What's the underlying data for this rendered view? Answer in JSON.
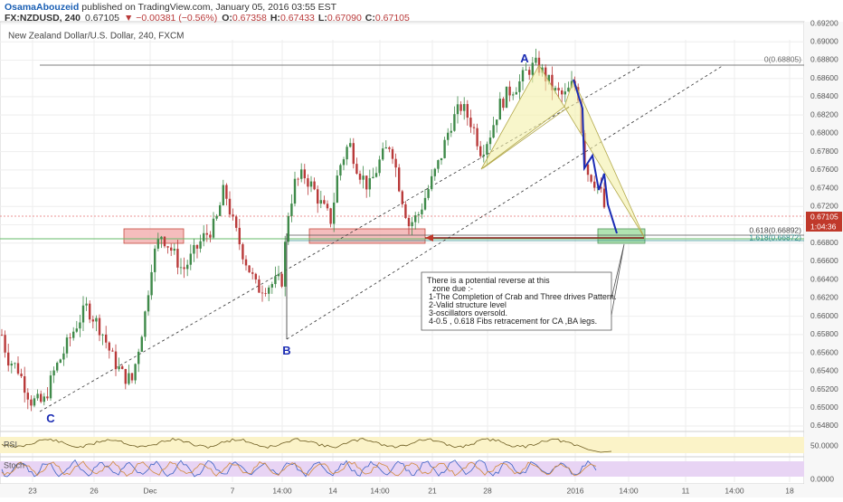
{
  "header": {
    "author": "OsamaAbouzeid",
    "published_text": "published on TradingView.com, January 05, 2016 03:55 EST",
    "symbol": "FX:NZDUSD, 240",
    "last_price": "0.67105",
    "change": "▼ −0.00381 (−0.56%)",
    "open_label": "O:",
    "open": "0.67358",
    "high_label": "H:",
    "high": "0.67433",
    "low_label": "L:",
    "low": "0.67090",
    "close_label": "C:",
    "close": "0.67105"
  },
  "chart_data": {
    "type": "candlestick",
    "title": "New Zealand Dollar/U.S. Dollar, 240, FXCM",
    "ylim": [
      0.6476,
      0.6922
    ],
    "y_ticks": [
      "0.69200",
      "0.69000",
      "0.68800",
      "0.68600",
      "0.68400",
      "0.68200",
      "0.68000",
      "0.67800",
      "0.67600",
      "0.67400",
      "0.67200",
      "0.67000",
      "0.66800",
      "0.66600",
      "0.66400",
      "0.66200",
      "0.66000",
      "0.65800",
      "0.65600",
      "0.65400",
      "0.65200",
      "0.65000",
      "0.64800"
    ],
    "x_ticks": [
      "23",
      "26",
      "Dec",
      "7",
      "14:00",
      "14",
      "14:00",
      "21",
      "28",
      "2016",
      "14:00",
      "11",
      "14:00",
      "18"
    ],
    "current_price_tag": "0.67105",
    "countdown_tag": "1:04:36",
    "fib_levels": [
      {
        "label": "0(0.68805)",
        "value": 0.68805
      },
      {
        "label": "0.618(0.66892)",
        "value": 0.66892
      },
      {
        "label": "1.618(0.66872)",
        "value": 0.66872
      }
    ],
    "pattern_points": [
      {
        "label": "A",
        "date": "Dec 29",
        "price": 0.6882
      },
      {
        "label": "B",
        "date": "Dec 1",
        "price": 0.6574
      },
      {
        "label": "C",
        "date": "Nov 23",
        "price": 0.6497
      }
    ],
    "annotation": {
      "lines": [
        "There is a potential reverse at this",
        "zone due :-",
        "1-The Completion of Crab and Three drives Pattern.",
        "2-Valid structure level",
        "3-oscillators oversold.",
        "4-0.5 , 0.618 Fibs retracement for CA ,BA legs."
      ]
    },
    "indicators": [
      {
        "name": "RSI",
        "value_tag": "50.0000"
      },
      {
        "name": "Stoch",
        "value_tag": "0.0000"
      }
    ],
    "colors": {
      "up": "#3f8a4a",
      "down": "#b93a3a",
      "pattern_line": "#1a2bb3"
    }
  }
}
